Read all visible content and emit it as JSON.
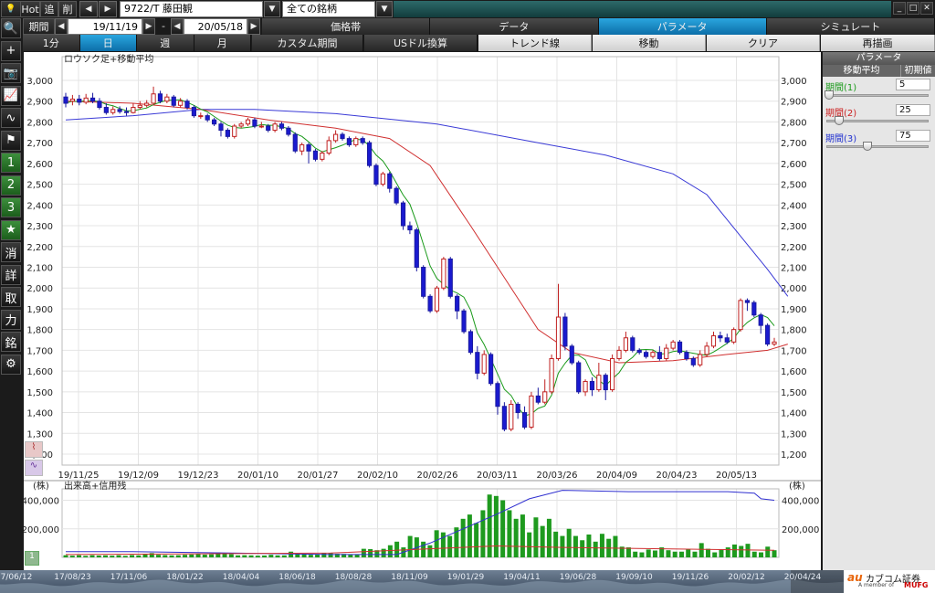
{
  "titlebar": {
    "hot": "Hot",
    "back": "追",
    "del": "削",
    "symbol": "9722/T 藤田観",
    "list": "全ての銘柄"
  },
  "period": {
    "label": "期間",
    "from": "19/11/19",
    "dash": "-",
    "to": "20/05/18"
  },
  "tabs_main": [
    "価格帯",
    "データ",
    "パラメータ",
    "シミュレート"
  ],
  "tabs_main_selected": 2,
  "timeframes": [
    "1分",
    "日",
    "週",
    "月"
  ],
  "timeframe_selected": 1,
  "buttons": {
    "custom": "カスタム期間",
    "usd": "USドル換算",
    "trend": "トレンド線",
    "move": "移動",
    "clear": "クリア",
    "redraw": "再描画"
  },
  "sidebar_icons": [
    {
      "name": "search-icon",
      "glyph": "🔍",
      "style": "dark"
    },
    {
      "name": "crosshair-icon",
      "glyph": "+",
      "style": "dark"
    },
    {
      "name": "camera-icon",
      "glyph": "📷",
      "style": "dark"
    },
    {
      "name": "chart-line-icon",
      "glyph": "📈",
      "style": "dark"
    },
    {
      "name": "chart-compare-icon",
      "glyph": "∿",
      "style": "dark"
    },
    {
      "name": "flag-icon",
      "glyph": "⚑",
      "style": "dark"
    },
    {
      "name": "layout-1-icon",
      "glyph": "1",
      "style": "green"
    },
    {
      "name": "layout-2-icon",
      "glyph": "2",
      "style": "green"
    },
    {
      "name": "layout-3-icon",
      "glyph": "3",
      "style": "green"
    },
    {
      "name": "favorite-star-icon",
      "glyph": "★",
      "style": "green"
    },
    {
      "name": "news-icon",
      "glyph": "消",
      "style": "dark"
    },
    {
      "name": "detail-icon",
      "glyph": "詳",
      "style": "dark"
    },
    {
      "name": "trade-icon",
      "glyph": "取",
      "style": "dark"
    },
    {
      "name": "input-icon",
      "glyph": "力",
      "style": "dark"
    },
    {
      "name": "brand-icon",
      "glyph": "銘",
      "style": "dark"
    },
    {
      "name": "settings-gear-icon",
      "glyph": "⚙",
      "style": "dark"
    }
  ],
  "params": {
    "header": "パラメータ",
    "col1": "移動平均",
    "col2": "初期値",
    "items": [
      {
        "label": "期間(1)",
        "value": "5",
        "color": "#1a9a1a",
        "slider": 0.0
      },
      {
        "label": "期間(2)",
        "value": "25",
        "color": "#cc1f1f",
        "slider": 0.1
      },
      {
        "label": "期間(3)",
        "value": "75",
        "color": "#2030d0",
        "slider": 0.38
      }
    ]
  },
  "brand": {
    "logo": "au",
    "name": "カブコム証券",
    "sub": "A member of",
    "group": "MUFG"
  },
  "timeline": [
    "7/06/12",
    "17/08/23",
    "17/11/06",
    "18/01/22",
    "18/04/04",
    "18/06/18",
    "18/08/28",
    "18/11/09",
    "19/01/29",
    "19/04/11",
    "19/06/28",
    "19/09/10",
    "19/11/26",
    "20/02/12",
    "20/04/24"
  ],
  "chart_data": [
    {
      "type": "candlestick",
      "title": "ロウソク足+移動平均",
      "ylim": [
        1200,
        3000
      ],
      "yticks": [
        "3,000",
        "2,900",
        "2,800",
        "2,700",
        "2,600",
        "2,500",
        "2,400",
        "2,300",
        "2,200",
        "2,100",
        "2,000",
        "1,900",
        "1,800",
        "1,700",
        "1,600",
        "1,500",
        "1,400",
        "1,300",
        "1,200"
      ],
      "xticks": [
        "19/11/25",
        "19/12/09",
        "19/12/23",
        "20/01/10",
        "20/01/27",
        "20/02/10",
        "20/02/26",
        "20/03/11",
        "20/03/26",
        "20/04/09",
        "20/04/23",
        "20/05/13"
      ],
      "candles": [
        [
          2920,
          2890,
          2940,
          2870
        ],
        [
          2900,
          2910,
          2930,
          2880
        ],
        [
          2910,
          2895,
          2930,
          2880
        ],
        [
          2895,
          2915,
          2935,
          2885
        ],
        [
          2915,
          2900,
          2940,
          2890
        ],
        [
          2900,
          2870,
          2915,
          2860
        ],
        [
          2870,
          2845,
          2890,
          2835
        ],
        [
          2845,
          2860,
          2875,
          2835
        ],
        [
          2860,
          2850,
          2875,
          2840
        ],
        [
          2850,
          2845,
          2870,
          2830
        ],
        [
          2845,
          2870,
          2890,
          2840
        ],
        [
          2870,
          2880,
          2900,
          2860
        ],
        [
          2880,
          2890,
          2905,
          2870
        ],
        [
          2890,
          2935,
          2970,
          2880
        ],
        [
          2935,
          2900,
          2950,
          2890
        ],
        [
          2900,
          2920,
          2935,
          2890
        ],
        [
          2920,
          2880,
          2930,
          2870
        ],
        [
          2880,
          2900,
          2915,
          2870
        ],
        [
          2900,
          2870,
          2910,
          2860
        ],
        [
          2870,
          2830,
          2880,
          2820
        ],
        [
          2830,
          2830,
          2845,
          2815
        ],
        [
          2830,
          2810,
          2840,
          2800
        ],
        [
          2810,
          2790,
          2820,
          2780
        ],
        [
          2790,
          2760,
          2800,
          2730
        ],
        [
          2760,
          2730,
          2770,
          2720
        ],
        [
          2730,
          2780,
          2790,
          2720
        ],
        [
          2780,
          2790,
          2800,
          2770
        ],
        [
          2790,
          2810,
          2820,
          2780
        ],
        [
          2810,
          2780,
          2820,
          2770
        ],
        [
          2780,
          2780,
          2800,
          2770
        ],
        [
          2780,
          2760,
          2790,
          2750
        ],
        [
          2760,
          2790,
          2800,
          2750
        ],
        [
          2790,
          2770,
          2800,
          2760
        ],
        [
          2770,
          2740,
          2780,
          2730
        ],
        [
          2740,
          2660,
          2750,
          2650
        ],
        [
          2660,
          2690,
          2700,
          2640
        ],
        [
          2690,
          2660,
          2700,
          2600
        ],
        [
          2660,
          2620,
          2670,
          2610
        ],
        [
          2620,
          2650,
          2660,
          2610
        ],
        [
          2650,
          2710,
          2730,
          2640
        ],
        [
          2710,
          2740,
          2760,
          2700
        ],
        [
          2740,
          2720,
          2750,
          2710
        ],
        [
          2720,
          2690,
          2730,
          2680
        ],
        [
          2690,
          2720,
          2730,
          2680
        ],
        [
          2720,
          2700,
          2730,
          2690
        ],
        [
          2700,
          2590,
          2710,
          2580
        ],
        [
          2590,
          2500,
          2600,
          2490
        ],
        [
          2500,
          2550,
          2560,
          2490
        ],
        [
          2550,
          2480,
          2560,
          2460
        ],
        [
          2480,
          2410,
          2490,
          2400
        ],
        [
          2410,
          2300,
          2420,
          2280
        ],
        [
          2300,
          2280,
          2320,
          2260
        ],
        [
          2280,
          2100,
          2290,
          2080
        ],
        [
          2100,
          1960,
          2110,
          1950
        ],
        [
          1960,
          1890,
          1970,
          1880
        ],
        [
          1890,
          2000,
          2010,
          1880
        ],
        [
          2000,
          2140,
          2150,
          1990
        ],
        [
          2140,
          1960,
          2150,
          1950
        ],
        [
          1960,
          1890,
          1970,
          1850
        ],
        [
          1890,
          1790,
          1900,
          1780
        ],
        [
          1790,
          1690,
          1800,
          1680
        ],
        [
          1690,
          1590,
          1720,
          1560
        ],
        [
          1590,
          1680,
          1700,
          1580
        ],
        [
          1680,
          1540,
          1690,
          1530
        ],
        [
          1540,
          1430,
          1550,
          1390
        ],
        [
          1430,
          1320,
          1450,
          1310
        ],
        [
          1320,
          1440,
          1460,
          1310
        ],
        [
          1440,
          1400,
          1450,
          1370
        ],
        [
          1400,
          1330,
          1430,
          1320
        ],
        [
          1330,
          1480,
          1500,
          1320
        ],
        [
          1480,
          1450,
          1520,
          1440
        ],
        [
          1450,
          1500,
          1560,
          1440
        ],
        [
          1500,
          1660,
          1680,
          1490
        ],
        [
          1660,
          1860,
          2020,
          1650
        ],
        [
          1860,
          1720,
          1880,
          1700
        ],
        [
          1720,
          1640,
          1730,
          1630
        ],
        [
          1640,
          1500,
          1650,
          1490
        ],
        [
          1500,
          1550,
          1560,
          1480
        ],
        [
          1550,
          1510,
          1570,
          1480
        ],
        [
          1510,
          1580,
          1640,
          1500
        ],
        [
          1580,
          1510,
          1590,
          1460
        ],
        [
          1510,
          1660,
          1680,
          1500
        ],
        [
          1660,
          1700,
          1720,
          1650
        ],
        [
          1700,
          1760,
          1790,
          1690
        ],
        [
          1760,
          1700,
          1770,
          1690
        ],
        [
          1700,
          1690,
          1710,
          1680
        ],
        [
          1690,
          1670,
          1700,
          1660
        ],
        [
          1670,
          1690,
          1700,
          1660
        ],
        [
          1690,
          1660,
          1720,
          1650
        ],
        [
          1660,
          1710,
          1730,
          1650
        ],
        [
          1710,
          1740,
          1750,
          1700
        ],
        [
          1740,
          1690,
          1750,
          1680
        ],
        [
          1690,
          1660,
          1700,
          1650
        ],
        [
          1660,
          1630,
          1670,
          1620
        ],
        [
          1630,
          1680,
          1700,
          1620
        ],
        [
          1680,
          1720,
          1740,
          1670
        ],
        [
          1720,
          1770,
          1790,
          1710
        ],
        [
          1770,
          1760,
          1790,
          1740
        ],
        [
          1760,
          1740,
          1780,
          1730
        ],
        [
          1740,
          1800,
          1810,
          1730
        ],
        [
          1800,
          1940,
          1950,
          1790
        ],
        [
          1940,
          1930,
          1950,
          1890
        ],
        [
          1930,
          1870,
          1940,
          1860
        ],
        [
          1870,
          1820,
          1880,
          1780
        ],
        [
          1820,
          1730,
          1830,
          1720
        ],
        [
          1730,
          1740,
          1760,
          1720
        ]
      ],
      "ma_labels": [
        "期間(1)",
        "期間(2)",
        "期間(3)"
      ],
      "ma3": [
        [
          0,
          2810
        ],
        [
          10,
          2830
        ],
        [
          20,
          2860
        ],
        [
          28,
          2860
        ],
        [
          40,
          2840
        ],
        [
          55,
          2790
        ],
        [
          70,
          2700
        ],
        [
          80,
          2640
        ],
        [
          90,
          2550
        ],
        [
          95,
          2450
        ],
        [
          100,
          2250
        ],
        [
          104,
          2090
        ],
        [
          107,
          1960
        ]
      ],
      "ma2": [
        [
          0,
          2900
        ],
        [
          10,
          2890
        ],
        [
          20,
          2860
        ],
        [
          30,
          2810
        ],
        [
          40,
          2770
        ],
        [
          48,
          2720
        ],
        [
          54,
          2590
        ],
        [
          60,
          2300
        ],
        [
          65,
          2050
        ],
        [
          70,
          1800
        ],
        [
          75,
          1690
        ],
        [
          82,
          1640
        ],
        [
          90,
          1650
        ],
        [
          98,
          1680
        ],
        [
          104,
          1700
        ],
        [
          107,
          1730
        ]
      ]
    },
    {
      "type": "bar",
      "title": "出来高+信用残",
      "yunit": "(株)",
      "yticks": [
        "400,000",
        "200,000"
      ],
      "ylim": [
        0,
        480000
      ],
      "volume": [
        15000,
        12000,
        15000,
        11000,
        15000,
        13000,
        14000,
        12000,
        15000,
        11000,
        16000,
        14000,
        22000,
        30000,
        18000,
        16000,
        14000,
        15000,
        18000,
        20000,
        22000,
        19000,
        21000,
        34000,
        25000,
        22000,
        14000,
        15000,
        14000,
        12000,
        13000,
        18000,
        14000,
        14000,
        40000,
        22000,
        24000,
        18000,
        19000,
        32000,
        30000,
        25000,
        24000,
        22000,
        22000,
        60000,
        58000,
        50000,
        60000,
        85000,
        110000,
        70000,
        150000,
        140000,
        110000,
        85000,
        190000,
        175000,
        150000,
        210000,
        270000,
        300000,
        240000,
        330000,
        440000,
        430000,
        400000,
        330000,
        270000,
        300000,
        175000,
        280000,
        220000,
        270000,
        180000,
        150000,
        200000,
        150000,
        120000,
        160000,
        110000,
        165000,
        130000,
        150000,
        75000,
        70000,
        40000,
        35000,
        55000,
        48000,
        70000,
        50000,
        40000,
        40000,
        55000,
        40000,
        100000,
        60000,
        35000,
        55000,
        70000,
        90000,
        80000,
        95000,
        40000,
        35000,
        75000,
        50000
      ],
      "margin_line": [
        [
          0,
          40000
        ],
        [
          10,
          40000
        ],
        [
          25,
          30000
        ],
        [
          40,
          20000
        ],
        [
          50,
          20000
        ],
        [
          55,
          100000
        ],
        [
          60,
          200000
        ],
        [
          65,
          300000
        ],
        [
          70,
          410000
        ],
        [
          75,
          470000
        ],
        [
          85,
          460000
        ],
        [
          100,
          460000
        ],
        [
          104,
          450000
        ],
        [
          105,
          410000
        ],
        [
          107,
          400000
        ]
      ],
      "short_line": [
        [
          0,
          20000
        ],
        [
          20,
          25000
        ],
        [
          40,
          30000
        ],
        [
          55,
          60000
        ],
        [
          65,
          80000
        ],
        [
          75,
          70000
        ],
        [
          90,
          60000
        ],
        [
          107,
          50000
        ]
      ]
    }
  ]
}
